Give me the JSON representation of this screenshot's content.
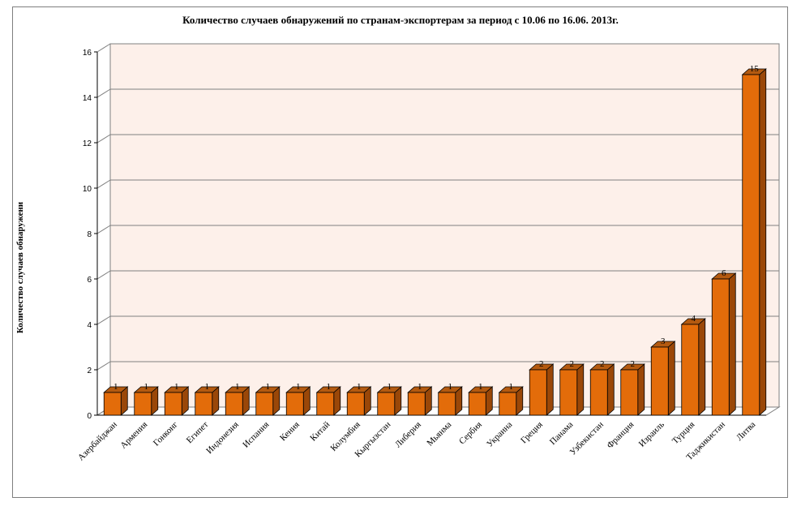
{
  "chart_data": {
    "type": "bar",
    "title": "Количество случаев обнаружений по странам-экспортерам за период с 10.06 по 16.06. 2013г.",
    "ylabel": "Количество случаев обнаружени",
    "xlabel": "",
    "ylim": [
      0,
      16
    ],
    "yticks": [
      0,
      2,
      4,
      6,
      8,
      10,
      12,
      14,
      16
    ],
    "grid": true,
    "legend": "none",
    "categories": [
      "Азербайджан",
      "Армения",
      "Гонконг",
      "Египет",
      "Индонезия",
      "Испания",
      "Кения",
      "Китай",
      "Колумбия",
      "Кыргызстан",
      "Либерия",
      "Мьянма",
      "Сербия",
      "Украина",
      "Греция",
      "Панама",
      "Узбекистан",
      "Франция",
      "Израиль",
      "Турция",
      "Таджикистан",
      "Литва"
    ],
    "values": [
      1,
      1,
      1,
      1,
      1,
      1,
      1,
      1,
      1,
      1,
      1,
      1,
      1,
      1,
      2,
      2,
      2,
      2,
      3,
      4,
      6,
      15
    ],
    "colors": {
      "bar_front": "#e36c0a",
      "bar_side": "#9a4708",
      "bar_top": "#b45a10",
      "bar_edge": "#000000",
      "wall": "#fdf0ea",
      "grid": "#808080"
    }
  }
}
